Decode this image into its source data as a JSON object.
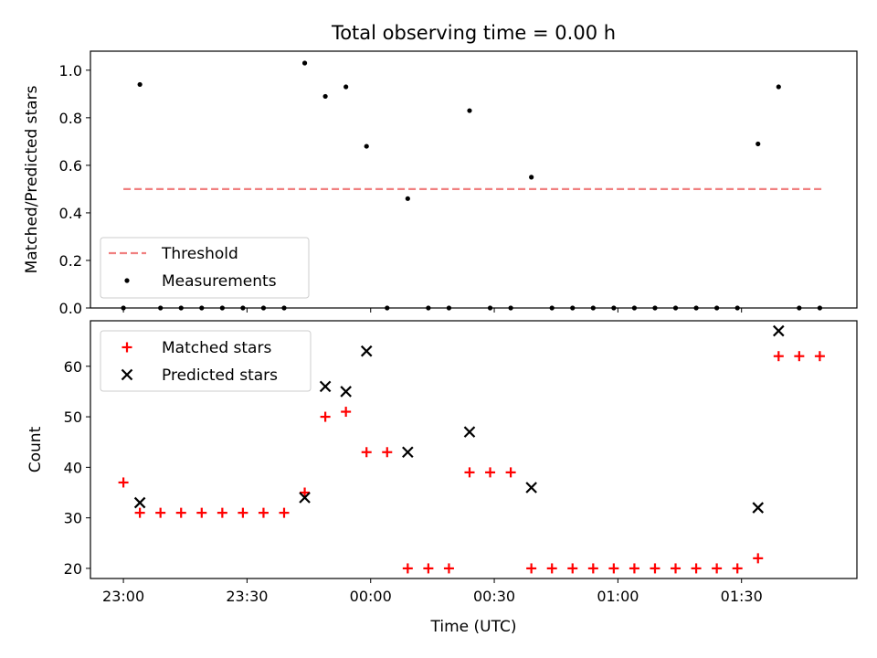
{
  "chart_data": [
    {
      "type": "scatter",
      "title": "Total observing time = 0.00 h",
      "ylabel": "Matched/Predicted stars",
      "xlabel": "",
      "ylim": [
        0,
        1.08
      ],
      "yticks": [
        "0.0",
        "0.2",
        "0.4",
        "0.6",
        "0.8",
        "1.0"
      ],
      "grid": false,
      "legend_position": "lower-left",
      "threshold": {
        "name": "Threshold",
        "value": 0.5,
        "x_start": "23:00",
        "x_end": "01:50",
        "color": "#f08080",
        "style": "dashed"
      },
      "series": [
        {
          "name": "Measurements",
          "marker": "dot",
          "color": "#000000",
          "x": [
            "23:00",
            "23:04",
            "23:09",
            "23:14",
            "23:19",
            "23:24",
            "23:29",
            "23:34",
            "23:39",
            "23:44",
            "23:49",
            "23:54",
            "23:59",
            "24:04",
            "24:09",
            "24:14",
            "24:19",
            "24:24",
            "24:29",
            "24:34",
            "24:39",
            "24:44",
            "24:49",
            "24:54",
            "24:59",
            "25:04",
            "25:09",
            "25:14",
            "25:19",
            "25:24",
            "25:29",
            "25:34",
            "25:39",
            "25:44",
            "25:49"
          ],
          "y": [
            0.0,
            0.94,
            0.0,
            0.0,
            0.0,
            0.0,
            0.0,
            0.0,
            0.0,
            1.03,
            0.89,
            0.93,
            0.68,
            0.0,
            0.46,
            0.0,
            0.0,
            0.83,
            0.0,
            0.0,
            0.55,
            0.0,
            0.0,
            0.0,
            0.0,
            0.0,
            0.0,
            0.0,
            0.0,
            0.0,
            0.0,
            0.69,
            0.93,
            0.0,
            0.0
          ]
        }
      ]
    },
    {
      "type": "scatter",
      "title": "",
      "xlabel": "Time (UTC)",
      "ylabel": "Count",
      "xlim": [
        "22:52",
        "01:58"
      ],
      "ylim": [
        18,
        69
      ],
      "yticks": [
        "20",
        "30",
        "40",
        "50",
        "60"
      ],
      "xticks": [
        "23:00",
        "23:30",
        "00:00",
        "00:30",
        "01:00",
        "01:30"
      ],
      "grid": false,
      "legend_position": "upper-left",
      "series": [
        {
          "name": "Matched stars",
          "marker": "plus",
          "color": "#ff0000",
          "x": [
            "23:00",
            "23:04",
            "23:09",
            "23:14",
            "23:19",
            "23:24",
            "23:29",
            "23:34",
            "23:39",
            "23:44",
            "23:49",
            "23:54",
            "23:59",
            "24:04",
            "24:09",
            "24:14",
            "24:19",
            "24:24",
            "24:29",
            "24:34",
            "24:39",
            "24:44",
            "24:49",
            "24:54",
            "24:59",
            "25:04",
            "25:09",
            "25:14",
            "25:19",
            "25:24",
            "25:29",
            "25:34",
            "25:39",
            "25:44",
            "25:49"
          ],
          "y": [
            37,
            31,
            31,
            31,
            31,
            31,
            31,
            31,
            31,
            35,
            50,
            51,
            43,
            43,
            20,
            20,
            20,
            39,
            39,
            39,
            20,
            20,
            20,
            20,
            20,
            20,
            20,
            20,
            20,
            20,
            20,
            22,
            62,
            62,
            62
          ]
        },
        {
          "name": "Predicted stars",
          "marker": "x",
          "color": "#000000",
          "x": [
            "23:04",
            "23:44",
            "23:49",
            "23:54",
            "23:59",
            "24:09",
            "24:24",
            "24:39",
            "25:34",
            "25:39"
          ],
          "y": [
            33,
            34,
            56,
            55,
            63,
            43,
            47,
            36,
            32,
            67
          ]
        }
      ]
    }
  ]
}
